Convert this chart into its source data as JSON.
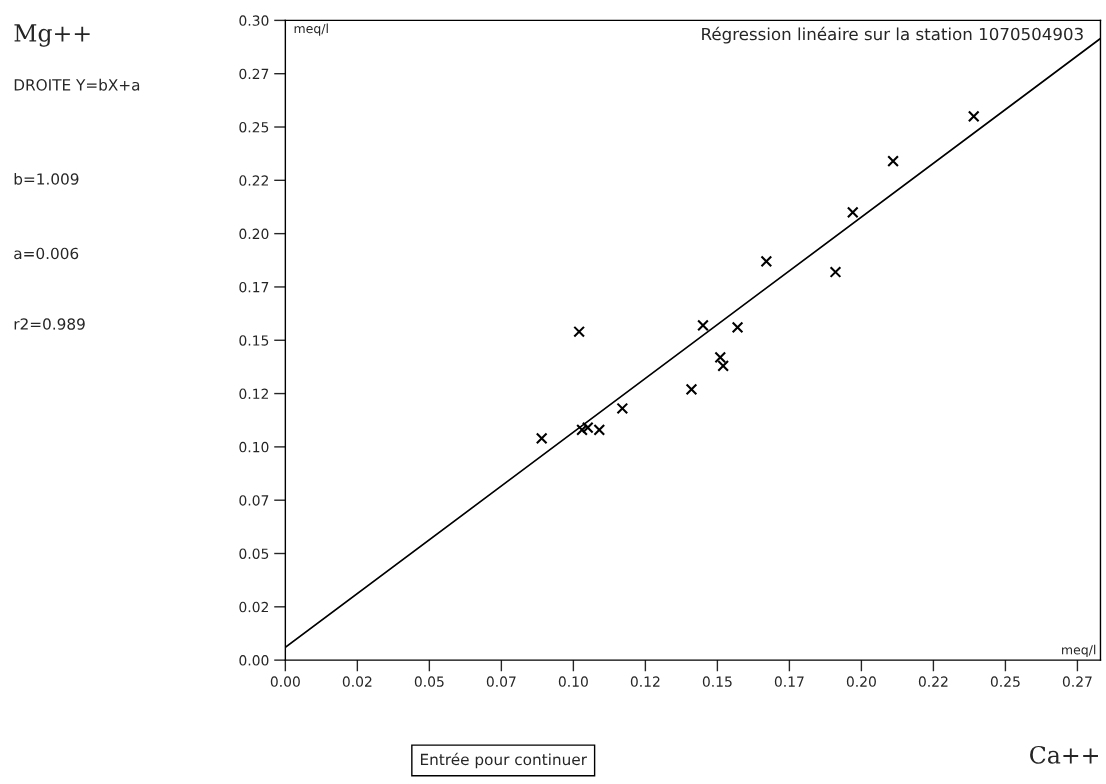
{
  "chart_data": {
    "type": "scatter",
    "title": "Régression linéaire sur la station 1070504903",
    "annotations": [
      "meq/l",
      "meq/l",
      "DROITE Y=bX+a",
      "b=1.009",
      "a=0.006",
      "r2=0.989",
      "Entrée pour continuer",
      "Mg++",
      "Ca++"
    ],
    "series": [
      {
        "color": "#000000",
        "marker": "cross",
        "x": [
          0.102,
          0.145,
          0.157,
          0.151,
          0.152,
          0.141,
          0.117,
          0.103,
          0.105,
          0.109,
          0.089,
          0.239,
          0.211,
          0.197,
          0.167,
          0.191
        ],
        "values": [
          0.154,
          0.157,
          0.156,
          0.142,
          0.138,
          0.127,
          0.118,
          0.108,
          0.109,
          0.108,
          0.104,
          0.255,
          0.234,
          0.21,
          0.187,
          0.182
        ]
      },
      {
        "type": "line",
        "color": "#000000",
        "x": [
          0,
          0.283
        ],
        "values": [
          0.006,
          0.2915
        ]
      }
    ],
    "xlim": [
      0,
      0.283
    ],
    "ylim": [
      0,
      0.3
    ],
    "xticks": [
      {
        "value": 0,
        "label": "0.00"
      },
      {
        "value": 0.025,
        "label": "0.02"
      },
      0.05,
      {
        "value": 0.075,
        "label": "0.07"
      },
      {
        "value": 0.1,
        "label": "0.10"
      },
      {
        "value": 0.125,
        "label": "0.12"
      },
      0.15,
      {
        "value": 0.175,
        "label": "0.17"
      },
      {
        "value": 0.2,
        "label": "0.20"
      },
      {
        "value": 0.225,
        "label": "0.22"
      },
      0.25,
      {
        "value": 0.275,
        "label": "0.27"
      }
    ],
    "yticks": [
      {
        "value": 0,
        "label": "0.00"
      },
      {
        "value": 0.025,
        "label": "0.02"
      },
      0.05,
      {
        "value": 0.075,
        "label": "0.07"
      },
      {
        "value": 0.1,
        "label": "0.10"
      },
      {
        "value": 0.125,
        "label": "0.12"
      },
      0.15,
      {
        "value": 0.175,
        "label": "0.17"
      },
      {
        "value": 0.2,
        "label": "0.20"
      },
      {
        "value": 0.225,
        "label": "0.22"
      },
      0.25,
      {
        "value": 0.275,
        "label": "0.27"
      },
      {
        "value": 0.3,
        "label": "0.30"
      }
    ],
    "grid": false
  }
}
